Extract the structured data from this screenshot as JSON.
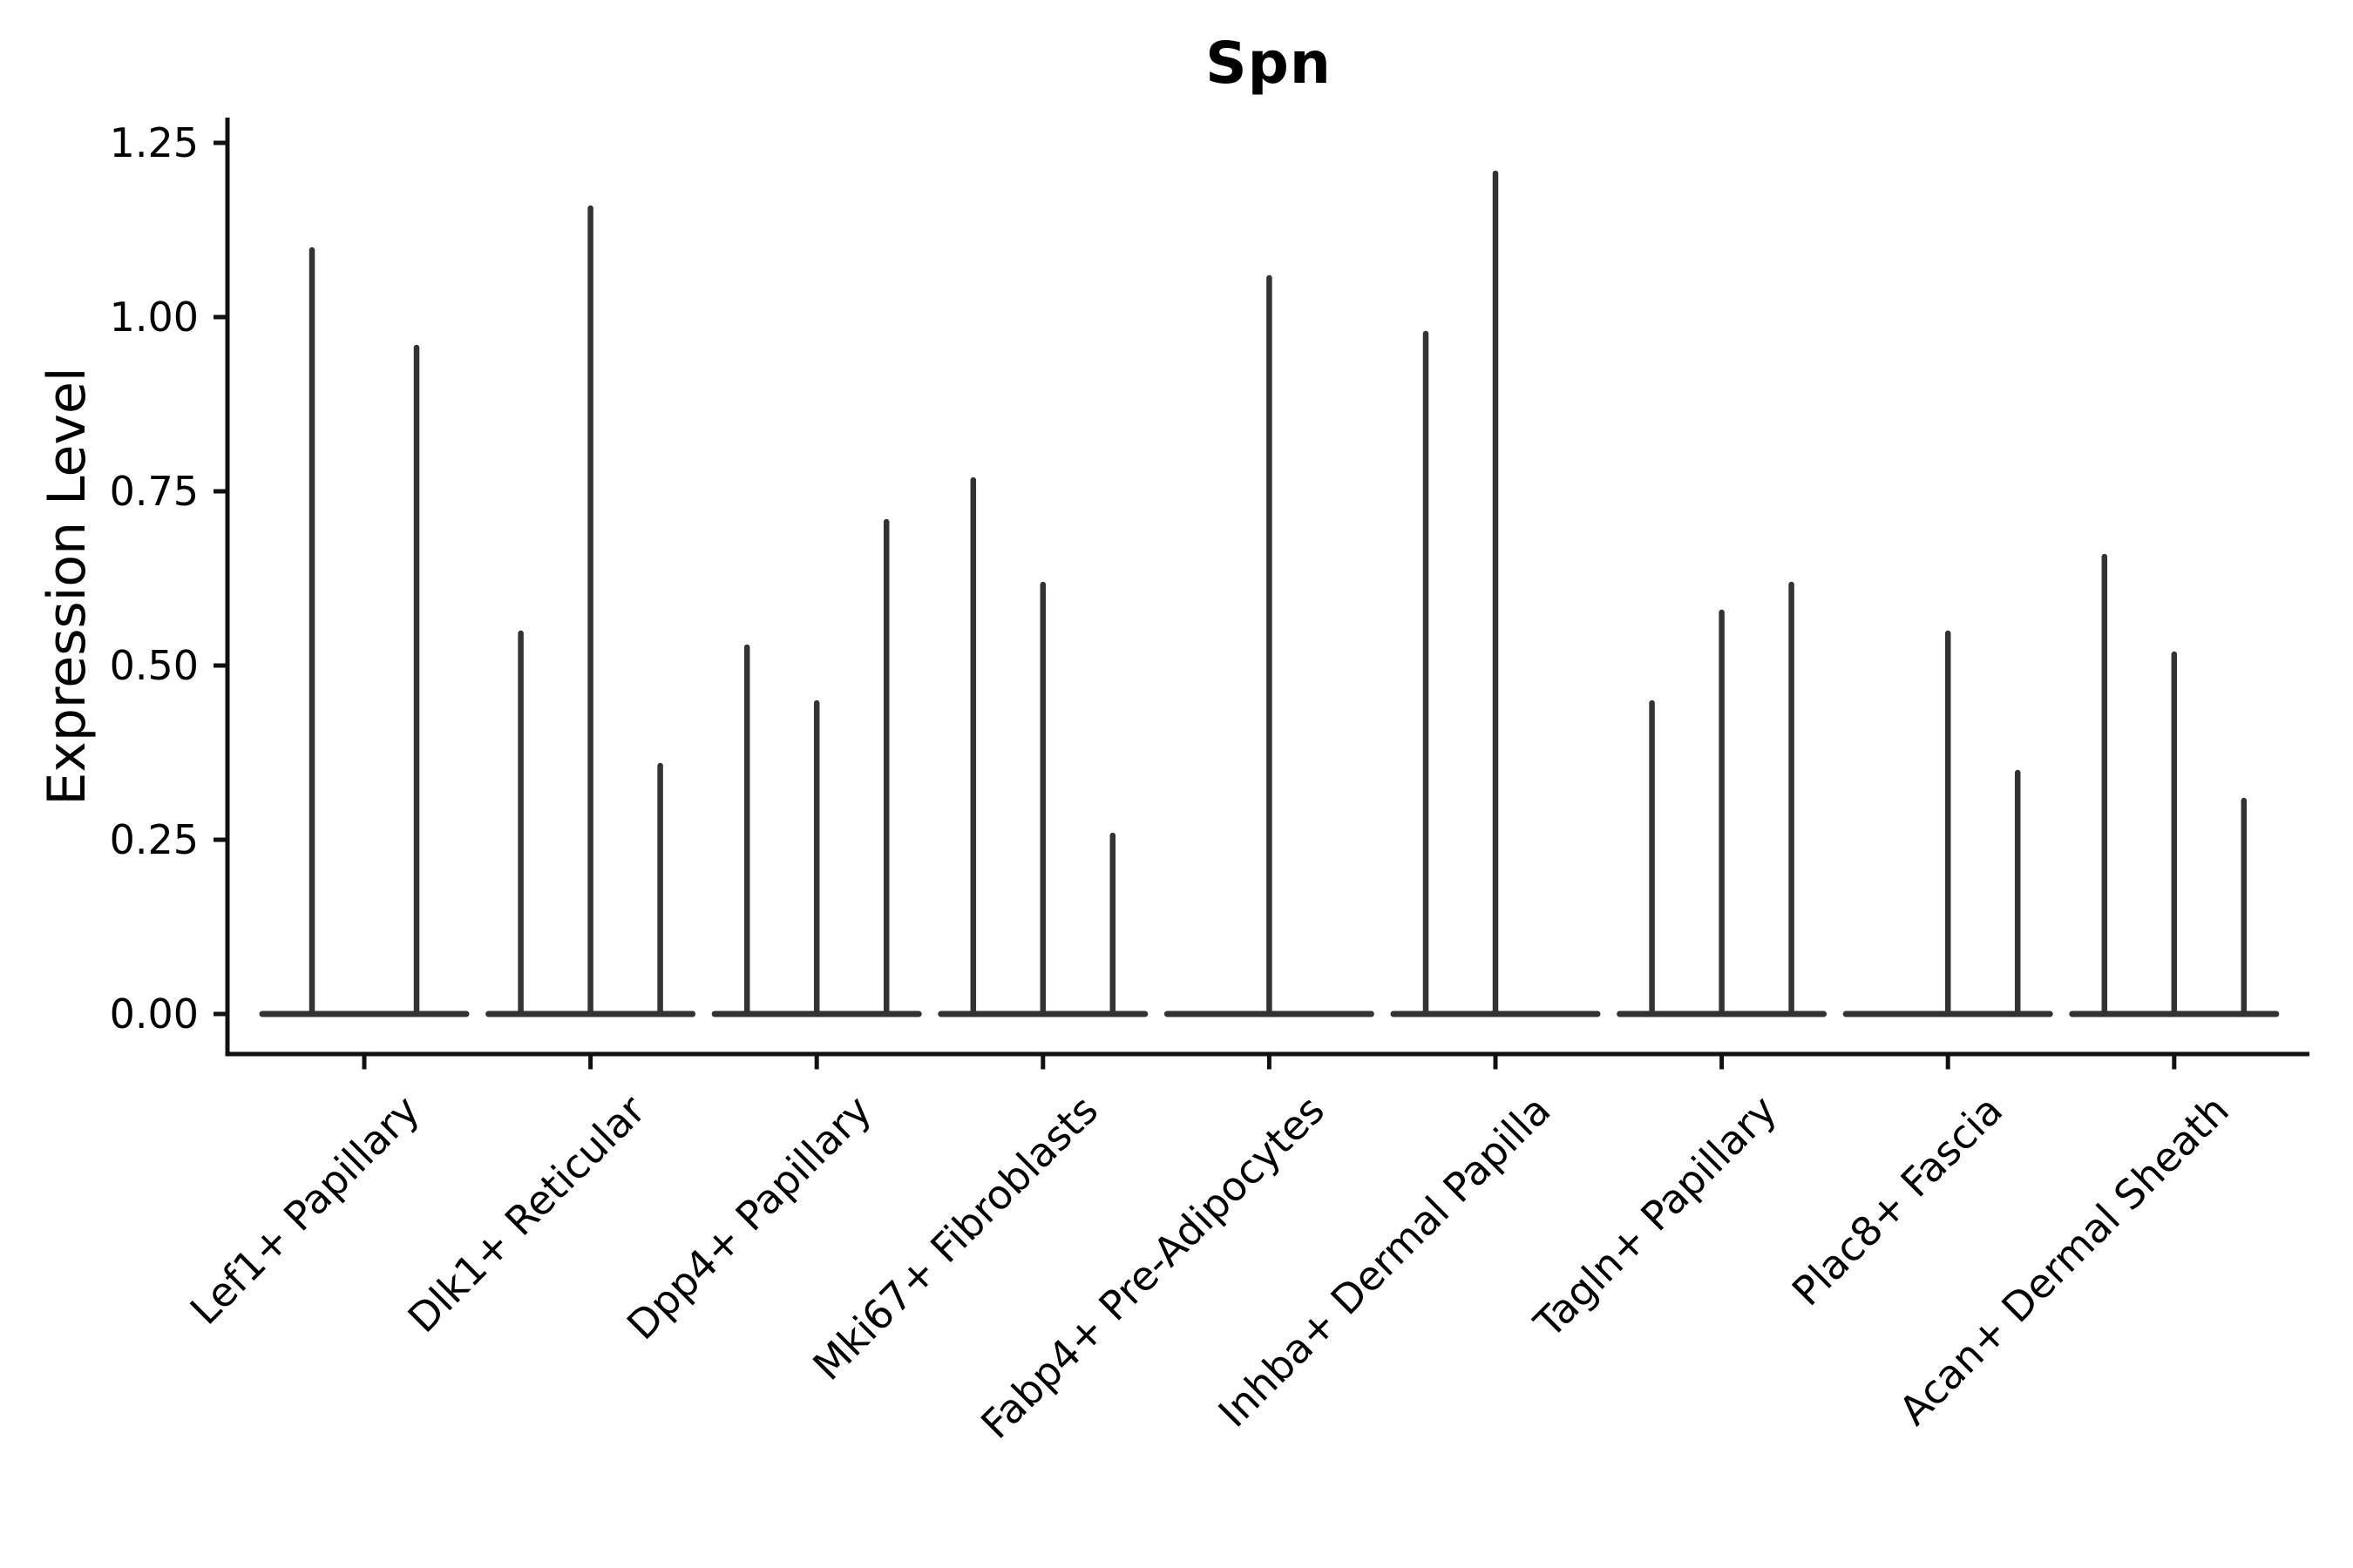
{
  "chart_data": {
    "type": "violin",
    "title": "Spn",
    "ylabel": "Expression Level",
    "xlabel": "",
    "grid": false,
    "legend": null,
    "ylim": [
      -0.06,
      1.29
    ],
    "yticks": [
      0,
      0.25,
      0.5,
      0.75,
      1.0,
      1.25
    ],
    "ytick_labels": [
      "0.00",
      "0.25",
      "0.50",
      "0.75",
      "1.00",
      "1.25"
    ],
    "categories": [
      "Lef1+ Papillary",
      "Dlk1+ Reticular",
      "Dpp4+ Papillary",
      "Mki67+ Fibroblasts",
      "Fabp4+ Pre-Adipocytes",
      "Inhba+ Dermal Papilla",
      "Tagln+ Papillary",
      "Plac8+ Fascia",
      "Acan+ Dermal Sheath"
    ],
    "series": [
      {
        "category": "Lef1+ Papillary",
        "violin_max_values": [
          1.1,
          0.96
        ]
      },
      {
        "category": "Dlk1+ Reticular",
        "violin_max_values": [
          0.55,
          1.16,
          0.36
        ]
      },
      {
        "category": "Dpp4+ Papillary",
        "violin_max_values": [
          0.53,
          0.45,
          0.71
        ]
      },
      {
        "category": "Mki67+ Fibroblasts",
        "violin_max_values": [
          0.77,
          0.62,
          0.26
        ]
      },
      {
        "category": "Fabp4+ Pre-Adipocytes",
        "violin_max_values": [
          1.06
        ]
      },
      {
        "category": "Inhba+ Dermal Papilla",
        "violin_max_values": [
          0.98,
          1.21,
          null
        ]
      },
      {
        "category": "Tagln+ Papillary",
        "violin_max_values": [
          0.45,
          0.58,
          0.62
        ]
      },
      {
        "category": "Plac8+ Fascia",
        "violin_max_values": [
          null,
          0.55,
          0.35
        ]
      },
      {
        "category": "Acan+ Dermal Sheath",
        "violin_max_values": [
          0.66,
          0.52,
          0.31
        ]
      }
    ],
    "violin_color": "#333333",
    "axis_color": "#111111",
    "text_color": "#000000",
    "background": "#ffffff"
  }
}
